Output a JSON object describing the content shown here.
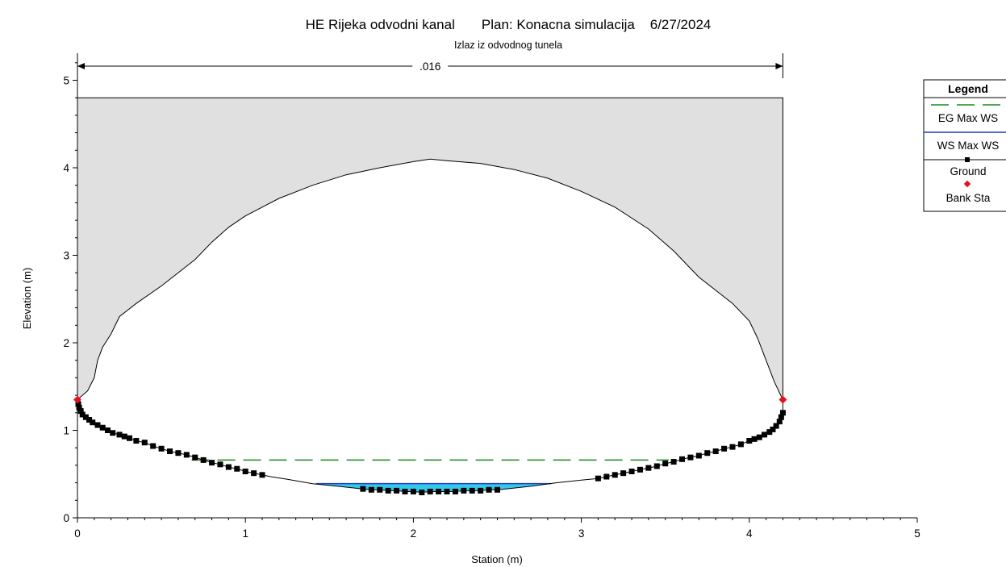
{
  "chart_data": {
    "type": "line",
    "title": "HE Rijeka odvodni kanal       Plan: Konacna simulacija    6/27/2024",
    "subtitle": "Izlaz iz odvodnog tunela",
    "xlabel": "Station (m)",
    "ylabel": "Elevation (m)",
    "xlim": [
      0,
      5
    ],
    "ylim": [
      0,
      5.3
    ],
    "x_ticks": [
      "0",
      "1",
      "2",
      "3",
      "4",
      "5"
    ],
    "y_ticks": [
      "0",
      "1",
      "2",
      "3",
      "4",
      "5"
    ],
    "manning_n_label": ".016",
    "manning_n_range": [
      0,
      4.2
    ],
    "legend": {
      "title": "Legend",
      "position": "right",
      "entries": [
        "EG Max WS",
        "WS Max WS",
        "Ground",
        "Bank Sta"
      ]
    },
    "colors": {
      "eg": "#1a8a1a",
      "ws": "#1e3cc8",
      "water": "#35c8ea",
      "ground": "#000000",
      "bank": "#e8101c",
      "fill": "#e0e0e0"
    },
    "lid_elevation": 4.8,
    "eg_elevation": 0.66,
    "eg_range": [
      0.68,
      3.52
    ],
    "ws_elevation": 0.39,
    "ws_range": [
      1.42,
      2.82
    ],
    "bank_stations": [
      [
        0,
        1.35
      ],
      [
        4.2,
        1.35
      ]
    ],
    "series": [
      {
        "name": "Ground",
        "points": [
          [
            0,
            1.35
          ],
          [
            0.005,
            1.3
          ],
          [
            0.01,
            1.26
          ],
          [
            0.02,
            1.22
          ],
          [
            0.03,
            1.18
          ],
          [
            0.05,
            1.15
          ],
          [
            0.07,
            1.12
          ],
          [
            0.09,
            1.09
          ],
          [
            0.12,
            1.06
          ],
          [
            0.15,
            1.03
          ],
          [
            0.18,
            1.0
          ],
          [
            0.21,
            0.97
          ],
          [
            0.25,
            0.95
          ],
          [
            0.28,
            0.93
          ],
          [
            0.31,
            0.91
          ],
          [
            0.35,
            0.88
          ],
          [
            0.4,
            0.86
          ],
          [
            0.45,
            0.82
          ],
          [
            0.5,
            0.79
          ],
          [
            0.55,
            0.76
          ],
          [
            0.6,
            0.74
          ],
          [
            0.65,
            0.72
          ],
          [
            0.7,
            0.69
          ],
          [
            0.75,
            0.66
          ],
          [
            0.8,
            0.63
          ],
          [
            0.85,
            0.61
          ],
          [
            0.9,
            0.58
          ],
          [
            0.95,
            0.56
          ],
          [
            1.0,
            0.53
          ],
          [
            1.05,
            0.51
          ],
          [
            1.1,
            0.49
          ],
          [
            1.15,
            0.47
          ],
          [
            1.25,
            0.44
          ],
          [
            1.4,
            0.39
          ],
          [
            1.55,
            0.36
          ],
          [
            1.7,
            0.33
          ],
          [
            1.75,
            0.32
          ],
          [
            1.8,
            0.32
          ],
          [
            1.85,
            0.31
          ],
          [
            1.9,
            0.31
          ],
          [
            1.95,
            0.3
          ],
          [
            2.0,
            0.3
          ],
          [
            2.05,
            0.29
          ],
          [
            2.1,
            0.3
          ],
          [
            2.15,
            0.3
          ],
          [
            2.2,
            0.3
          ],
          [
            2.25,
            0.3
          ],
          [
            2.3,
            0.31
          ],
          [
            2.35,
            0.31
          ],
          [
            2.4,
            0.31
          ],
          [
            2.45,
            0.32
          ],
          [
            2.5,
            0.32
          ],
          [
            2.55,
            0.33
          ],
          [
            2.7,
            0.36
          ],
          [
            2.85,
            0.4
          ],
          [
            3.0,
            0.43
          ],
          [
            3.1,
            0.45
          ],
          [
            3.15,
            0.47
          ],
          [
            3.2,
            0.49
          ],
          [
            3.25,
            0.51
          ],
          [
            3.3,
            0.53
          ],
          [
            3.35,
            0.55
          ],
          [
            3.4,
            0.57
          ],
          [
            3.45,
            0.59
          ],
          [
            3.5,
            0.62
          ],
          [
            3.55,
            0.64
          ],
          [
            3.6,
            0.67
          ],
          [
            3.65,
            0.69
          ],
          [
            3.7,
            0.71
          ],
          [
            3.75,
            0.74
          ],
          [
            3.8,
            0.76
          ],
          [
            3.85,
            0.79
          ],
          [
            3.9,
            0.81
          ],
          [
            3.95,
            0.84
          ],
          [
            4.0,
            0.88
          ],
          [
            4.03,
            0.9
          ],
          [
            4.06,
            0.92
          ],
          [
            4.09,
            0.95
          ],
          [
            4.12,
            0.98
          ],
          [
            4.14,
            1.01
          ],
          [
            4.16,
            1.05
          ],
          [
            4.18,
            1.1
          ],
          [
            4.19,
            1.15
          ],
          [
            4.2,
            1.2
          ],
          [
            4.2,
            1.27
          ],
          [
            4.2,
            1.35
          ]
        ]
      },
      {
        "name": "Tunnel crown",
        "points": [
          [
            0,
            1.35
          ],
          [
            0.06,
            1.45
          ],
          [
            0.1,
            1.6
          ],
          [
            0.12,
            1.8
          ],
          [
            0.15,
            1.95
          ],
          [
            0.2,
            2.1
          ],
          [
            0.25,
            2.3
          ],
          [
            0.35,
            2.45
          ],
          [
            0.5,
            2.65
          ],
          [
            0.7,
            2.95
          ],
          [
            0.8,
            3.15
          ],
          [
            0.9,
            3.32
          ],
          [
            1.0,
            3.45
          ],
          [
            1.2,
            3.65
          ],
          [
            1.4,
            3.8
          ],
          [
            1.6,
            3.92
          ],
          [
            1.8,
            4.0
          ],
          [
            2.0,
            4.07
          ],
          [
            2.1,
            4.1
          ],
          [
            2.2,
            4.08
          ],
          [
            2.4,
            4.05
          ],
          [
            2.6,
            3.98
          ],
          [
            2.8,
            3.88
          ],
          [
            3.0,
            3.73
          ],
          [
            3.2,
            3.55
          ],
          [
            3.4,
            3.3
          ],
          [
            3.55,
            3.05
          ],
          [
            3.7,
            2.75
          ],
          [
            3.9,
            2.45
          ],
          [
            4.0,
            2.25
          ],
          [
            4.05,
            2.05
          ],
          [
            4.1,
            1.8
          ],
          [
            4.15,
            1.55
          ],
          [
            4.2,
            1.35
          ]
        ]
      }
    ],
    "marker_stations": [
      0.005,
      0.01,
      0.02,
      0.03,
      0.05,
      0.07,
      0.09,
      0.12,
      0.15,
      0.18,
      0.21,
      0.25,
      0.28,
      0.31,
      0.35,
      0.4,
      0.45,
      0.5,
      0.55,
      0.6,
      0.65,
      0.7,
      0.75,
      0.8,
      0.85,
      0.9,
      0.95,
      1.0,
      1.05,
      1.1,
      1.7,
      1.75,
      1.8,
      1.85,
      1.9,
      1.95,
      2.0,
      2.05,
      2.1,
      2.15,
      2.2,
      2.25,
      2.3,
      2.35,
      2.4,
      2.45,
      2.5,
      3.1,
      3.15,
      3.2,
      3.25,
      3.3,
      3.35,
      3.4,
      3.45,
      3.5,
      3.55,
      3.6,
      3.65,
      3.7,
      3.75,
      3.8,
      3.85,
      3.9,
      3.95,
      4.0,
      4.03,
      4.06,
      4.09,
      4.12,
      4.14,
      4.16,
      4.18,
      4.19,
      4.2
    ]
  }
}
